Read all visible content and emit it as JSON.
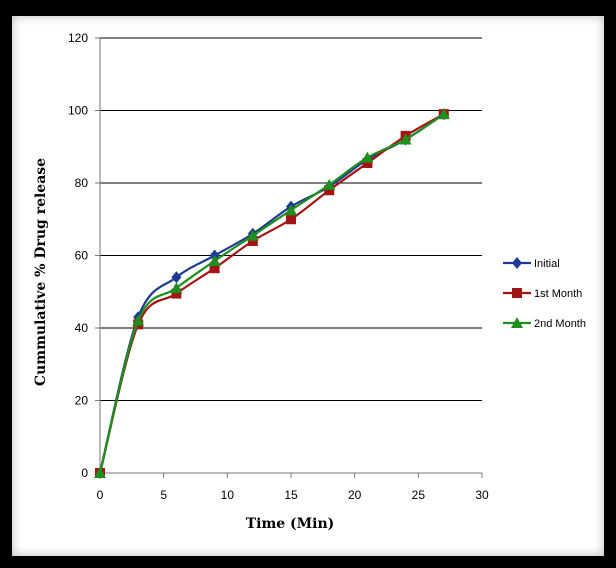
{
  "chart_data": {
    "type": "line",
    "title": "",
    "xlabel": "Time (Min)",
    "ylabel": "Cummulative % Drug release",
    "xlim": [
      0,
      30
    ],
    "ylim": [
      0,
      120
    ],
    "xticks": [
      0,
      5,
      10,
      15,
      20,
      25,
      30
    ],
    "yticks": [
      0,
      20,
      40,
      60,
      80,
      100,
      120
    ],
    "grid": "horizontal",
    "legend_position": "right",
    "x": [
      0,
      3,
      6,
      9,
      12,
      15,
      18,
      21,
      24,
      27
    ],
    "series": [
      {
        "name": "Initial",
        "color": "#1f3a93",
        "marker": "diamond",
        "values": [
          0,
          43,
          54,
          60,
          66,
          73.5,
          79,
          86.5,
          92,
          99
        ]
      },
      {
        "name": "1st Month",
        "color": "#a31515",
        "marker": "square",
        "values": [
          0,
          41,
          49.5,
          56.5,
          64,
          70,
          78,
          85.5,
          93,
          99
        ]
      },
      {
        "name": "2nd Month",
        "color": "#1e8f1e",
        "marker": "triangle",
        "values": [
          0,
          42,
          51,
          58.5,
          65.5,
          72.5,
          79.5,
          87,
          92,
          99
        ]
      }
    ]
  }
}
